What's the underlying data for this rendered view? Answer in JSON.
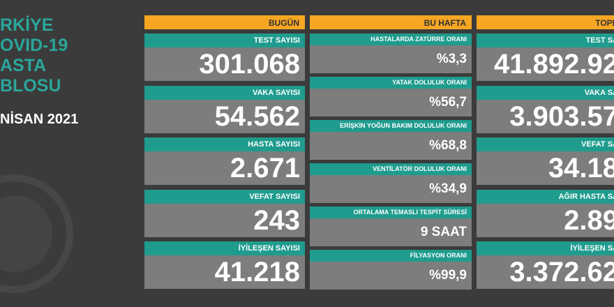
{
  "header": {
    "title_lines": [
      "RKİYE",
      "OVID-19",
      "ASTA",
      "BLOSU"
    ],
    "date": "NİSAN 2021"
  },
  "columns": [
    {
      "header": "BUGÜN",
      "cards": [
        {
          "label": "TEST SAYISI",
          "value": "301.068"
        },
        {
          "label": "VAKA SAYISI",
          "value": "54.562"
        },
        {
          "label": "HASTA SAYISI",
          "value": "2.671"
        },
        {
          "label": "VEFAT SAYISI",
          "value": "243"
        },
        {
          "label": "İYİLEŞEN SAYISI",
          "value": "41.218"
        }
      ]
    },
    {
      "header": "BU HAFTA",
      "cards": [
        {
          "label": "HASTALARDA ZATÜRRE ORANI",
          "value": "%3,3"
        },
        {
          "label": "YATAK DOLULUK ORANI",
          "value": "%56,7"
        },
        {
          "label": "ERİŞKİN YOĞUN BAKIM DOLULUK ORANI",
          "value": "%68,8"
        },
        {
          "label": "VENTİLATÖR DOLULUK ORANI",
          "value": "%34,9"
        },
        {
          "label": "ORTALAMA TEMASLI TESPİT SÜRESİ",
          "value": "9 SAAT"
        },
        {
          "label": "FİLYASYON ORANI",
          "value": "%99,9"
        }
      ]
    },
    {
      "header": "TOPL",
      "cards": [
        {
          "label": "TEST SA",
          "value": "41.892.92"
        },
        {
          "label": "VAKA SA",
          "value": "3.903.57"
        },
        {
          "label": "VEFAT SA",
          "value": "34.18"
        },
        {
          "label": "AĞIR HASTA SA",
          "value": "2.89"
        },
        {
          "label": "İYİLEŞEN SA",
          "value": "3.372.62"
        }
      ]
    }
  ]
}
